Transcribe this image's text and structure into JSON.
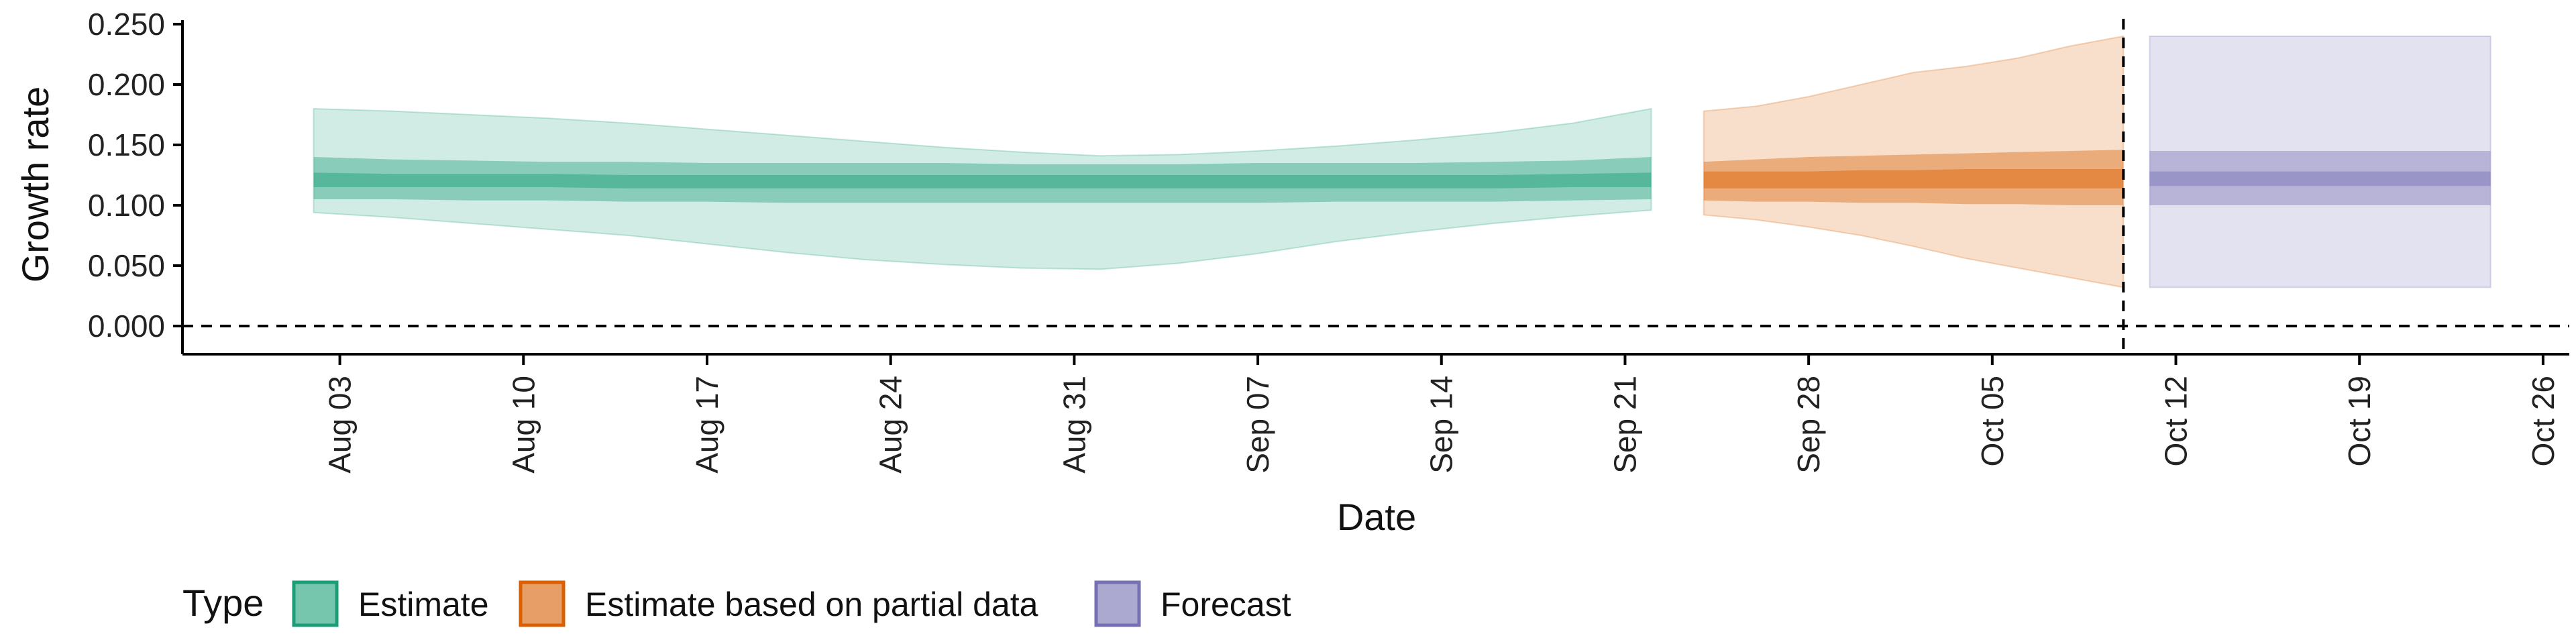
{
  "chart_data": {
    "type": "area",
    "title": "",
    "xlabel": "Date",
    "ylabel": "Growth rate",
    "ylim": [
      0,
      0.25
    ],
    "yticks": [
      "0.000",
      "0.050",
      "0.100",
      "0.150",
      "0.200",
      "0.250"
    ],
    "xlim": [
      "2020-07-28",
      "2020-10-27"
    ],
    "xticks": [
      {
        "date": "2020-08-03",
        "label": "Aug 03"
      },
      {
        "date": "2020-08-10",
        "label": "Aug 10"
      },
      {
        "date": "2020-08-17",
        "label": "Aug 17"
      },
      {
        "date": "2020-08-24",
        "label": "Aug 24"
      },
      {
        "date": "2020-08-31",
        "label": "Aug 31"
      },
      {
        "date": "2020-09-07",
        "label": "Sep 07"
      },
      {
        "date": "2020-09-14",
        "label": "Sep 14"
      },
      {
        "date": "2020-09-21",
        "label": "Sep 21"
      },
      {
        "date": "2020-09-28",
        "label": "Sep 28"
      },
      {
        "date": "2020-10-05",
        "label": "Oct 05"
      },
      {
        "date": "2020-10-12",
        "label": "Oct 12"
      },
      {
        "date": "2020-10-19",
        "label": "Oct 19"
      },
      {
        "date": "2020-10-26",
        "label": "Oct 26"
      }
    ],
    "hline": 0,
    "vline": "2020-10-10",
    "grid": false,
    "legend": {
      "title": "Type",
      "position": "bottom",
      "entries": [
        {
          "label": "Estimate",
          "color": "#1b9e77"
        },
        {
          "label": "Estimate based on partial data",
          "color": "#d95f02"
        },
        {
          "label": "Forecast",
          "color": "#7570b3"
        }
      ]
    },
    "series": [
      {
        "name": "Estimate",
        "color": "#1b9e77",
        "x": [
          "2020-08-02",
          "2020-08-05",
          "2020-08-08",
          "2020-08-11",
          "2020-08-14",
          "2020-08-17",
          "2020-08-20",
          "2020-08-23",
          "2020-08-26",
          "2020-08-29",
          "2020-09-01",
          "2020-09-04",
          "2020-09-07",
          "2020-09-10",
          "2020-09-13",
          "2020-09-16",
          "2020-09-19",
          "2020-09-22"
        ],
        "upper90": [
          0.18,
          0.178,
          0.175,
          0.172,
          0.168,
          0.163,
          0.158,
          0.153,
          0.148,
          0.144,
          0.141,
          0.142,
          0.145,
          0.149,
          0.154,
          0.16,
          0.168,
          0.18
        ],
        "lower90": [
          0.094,
          0.09,
          0.085,
          0.08,
          0.075,
          0.068,
          0.061,
          0.055,
          0.051,
          0.048,
          0.047,
          0.052,
          0.06,
          0.07,
          0.078,
          0.085,
          0.091,
          0.096
        ],
        "upper50": [
          0.14,
          0.138,
          0.137,
          0.136,
          0.136,
          0.135,
          0.135,
          0.135,
          0.135,
          0.134,
          0.134,
          0.134,
          0.135,
          0.135,
          0.135,
          0.136,
          0.137,
          0.14
        ],
        "lower50": [
          0.105,
          0.105,
          0.104,
          0.104,
          0.103,
          0.103,
          0.102,
          0.102,
          0.102,
          0.102,
          0.102,
          0.102,
          0.102,
          0.103,
          0.103,
          0.103,
          0.104,
          0.105
        ],
        "upper20": [
          0.127,
          0.126,
          0.126,
          0.126,
          0.125,
          0.125,
          0.125,
          0.125,
          0.125,
          0.125,
          0.125,
          0.125,
          0.125,
          0.125,
          0.125,
          0.125,
          0.126,
          0.127
        ],
        "lower20": [
          0.115,
          0.115,
          0.115,
          0.115,
          0.114,
          0.114,
          0.114,
          0.114,
          0.114,
          0.114,
          0.114,
          0.114,
          0.114,
          0.114,
          0.114,
          0.114,
          0.115,
          0.115
        ]
      },
      {
        "name": "Estimate based on partial data",
        "color": "#d95f02",
        "x": [
          "2020-09-24",
          "2020-09-26",
          "2020-09-28",
          "2020-09-30",
          "2020-10-02",
          "2020-10-04",
          "2020-10-06",
          "2020-10-08",
          "2020-10-10"
        ],
        "upper90": [
          0.178,
          0.182,
          0.19,
          0.2,
          0.21,
          0.215,
          0.222,
          0.232,
          0.24
        ],
        "lower90": [
          0.092,
          0.088,
          0.082,
          0.075,
          0.066,
          0.056,
          0.048,
          0.04,
          0.032
        ],
        "upper50": [
          0.136,
          0.138,
          0.14,
          0.141,
          0.142,
          0.143,
          0.144,
          0.145,
          0.146
        ],
        "lower50": [
          0.104,
          0.103,
          0.103,
          0.102,
          0.102,
          0.101,
          0.101,
          0.1,
          0.1
        ],
        "upper20": [
          0.128,
          0.128,
          0.128,
          0.129,
          0.129,
          0.13,
          0.13,
          0.13,
          0.13
        ],
        "lower20": [
          0.114,
          0.114,
          0.114,
          0.114,
          0.114,
          0.114,
          0.114,
          0.114,
          0.114
        ]
      },
      {
        "name": "Forecast",
        "color": "#7570b3",
        "x": [
          "2020-10-11",
          "2020-10-24"
        ],
        "upper90": [
          0.24,
          0.24
        ],
        "lower90": [
          0.032,
          0.032
        ],
        "upper50": [
          0.145,
          0.145
        ],
        "lower50": [
          0.1,
          0.1
        ],
        "upper20": [
          0.128,
          0.128
        ],
        "lower20": [
          0.116,
          0.116
        ]
      }
    ]
  }
}
